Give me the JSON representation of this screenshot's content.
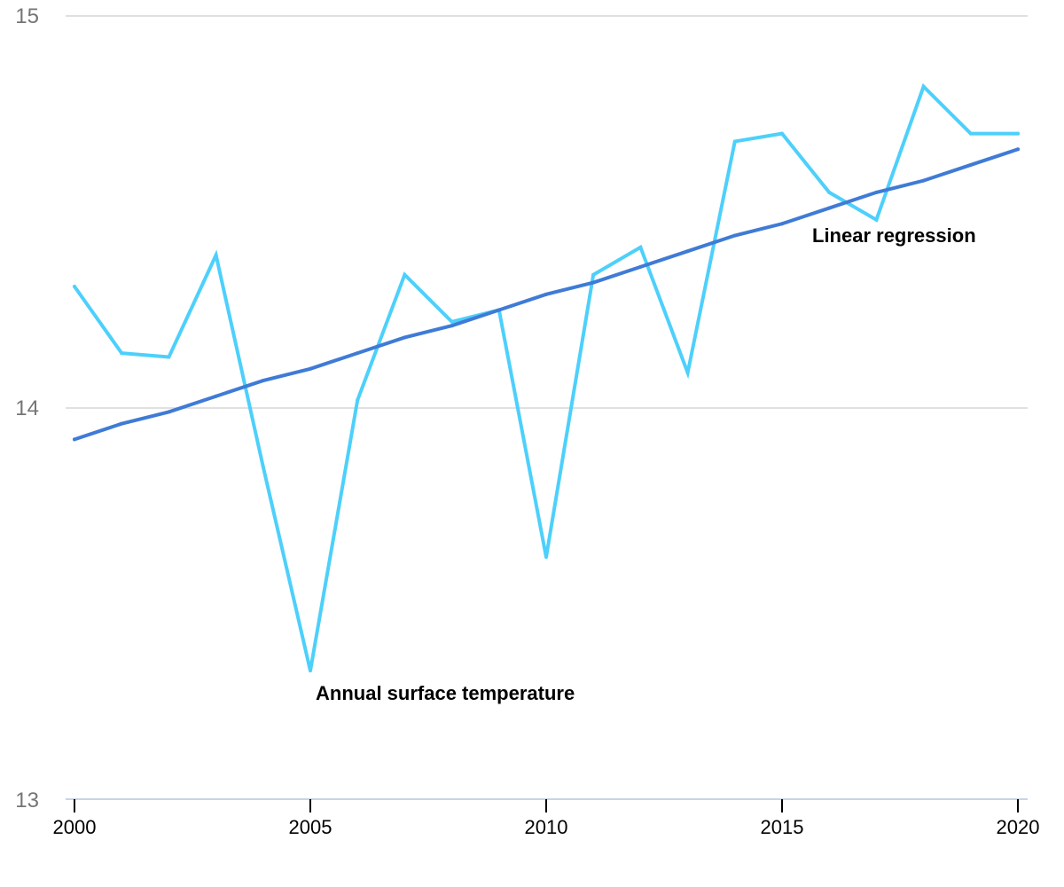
{
  "chart_data": {
    "type": "line",
    "title": "",
    "xlabel": "",
    "ylabel": "",
    "x": [
      2000,
      2001,
      2002,
      2003,
      2004,
      2005,
      2006,
      2007,
      2008,
      2009,
      2010,
      2011,
      2012,
      2013,
      2014,
      2015,
      2016,
      2017,
      2018,
      2019,
      2020
    ],
    "xlim": [
      2000,
      2020
    ],
    "ylim": [
      13,
      15
    ],
    "grid": true,
    "yticks": [
      13,
      14,
      15
    ],
    "ytick_labels": [
      "13",
      "14",
      "15"
    ],
    "xticks": [
      2000,
      2005,
      2010,
      2015,
      2020
    ],
    "xtick_labels": [
      "2000",
      "2005",
      "2010",
      "2015",
      "2020"
    ],
    "legend": "none",
    "series": [
      {
        "name": "Annual surface temperature",
        "color": "#4dd0fb",
        "values": [
          14.31,
          14.14,
          14.13,
          14.39,
          13.85,
          13.33,
          14.02,
          14.34,
          14.22,
          14.25,
          13.62,
          14.34,
          14.41,
          14.09,
          14.68,
          14.7,
          14.55,
          14.48,
          14.82,
          14.7,
          14.7
        ]
      },
      {
        "name": "Linear regression",
        "color": "#3f7bd6",
        "values": [
          13.92,
          13.96,
          13.99,
          14.03,
          14.07,
          14.1,
          14.14,
          14.18,
          14.21,
          14.25,
          14.29,
          14.32,
          14.36,
          14.4,
          14.44,
          14.47,
          14.51,
          14.55,
          14.58,
          14.62,
          14.66
        ]
      }
    ],
    "annotations": [
      {
        "text": "Annual surface temperature",
        "series": "Annual surface temperature",
        "near_x": 2005
      },
      {
        "text": "Linear regression",
        "series": "Linear regression",
        "near_x": 2017
      }
    ]
  }
}
